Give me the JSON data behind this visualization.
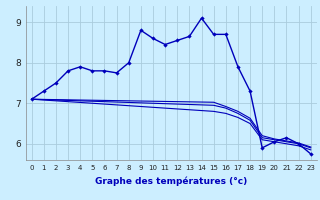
{
  "xlabel": "Graphe des températures (°c)",
  "background_color": "#cceeff",
  "grid_color": "#aaccdd",
  "line_color": "#0000bb",
  "hours": [
    0,
    1,
    2,
    3,
    4,
    5,
    6,
    7,
    8,
    9,
    10,
    11,
    12,
    13,
    14,
    15,
    16,
    17,
    18,
    19,
    20,
    21,
    22,
    23
  ],
  "temp_main": [
    7.1,
    7.3,
    7.5,
    7.8,
    7.9,
    7.8,
    7.8,
    7.75,
    8.0,
    8.8,
    8.6,
    8.45,
    8.55,
    8.65,
    9.1,
    8.7,
    8.7,
    7.9,
    7.3,
    5.9,
    6.05,
    6.15,
    6.0,
    5.75
  ],
  "temp_line1": [
    7.1,
    7.08,
    7.06,
    7.04,
    7.02,
    7.0,
    6.98,
    6.96,
    6.94,
    6.92,
    6.9,
    6.88,
    6.86,
    6.84,
    6.82,
    6.8,
    6.75,
    6.65,
    6.5,
    6.1,
    6.05,
    6.0,
    5.95,
    5.85
  ],
  "temp_line2": [
    7.1,
    7.09,
    7.08,
    7.07,
    7.06,
    7.05,
    7.04,
    7.03,
    7.02,
    7.01,
    7.0,
    6.99,
    6.98,
    6.97,
    6.96,
    6.95,
    6.88,
    6.75,
    6.58,
    6.15,
    6.1,
    6.05,
    6.0,
    5.9
  ],
  "temp_line3": [
    7.1,
    7.095,
    7.09,
    7.085,
    7.08,
    7.075,
    7.07,
    7.065,
    7.06,
    7.055,
    7.05,
    7.045,
    7.04,
    7.035,
    7.03,
    7.025,
    6.92,
    6.8,
    6.63,
    6.2,
    6.12,
    6.07,
    6.02,
    5.92
  ],
  "ylim": [
    5.6,
    9.4
  ],
  "yticks": [
    6,
    7,
    8,
    9
  ],
  "xlim": [
    -0.5,
    23.5
  ]
}
